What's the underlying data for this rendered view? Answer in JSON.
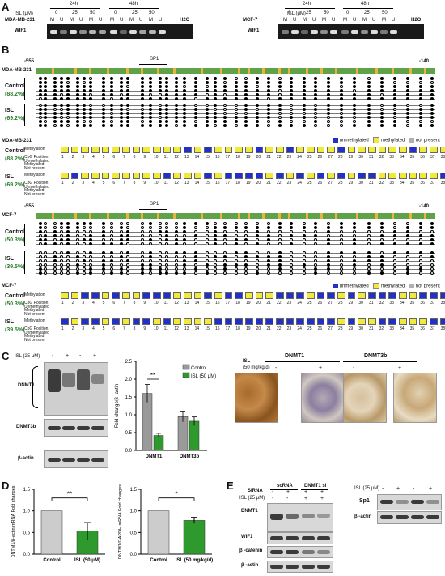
{
  "panels": {
    "a": "A",
    "b": "B",
    "c": "C",
    "d": "D",
    "e": "E"
  },
  "panelA": {
    "isl_label": "ISL (μM)",
    "left": {
      "cell": "MDA-MB-231",
      "gene": "WIF1",
      "h24": "24h",
      "h48": "48h",
      "doses": [
        "0",
        "25",
        "50",
        "0",
        "25",
        "50"
      ],
      "lanes": [
        "M",
        "U",
        "M",
        "U",
        "M",
        "U",
        "M",
        "U",
        "M",
        "U",
        "M",
        "U"
      ],
      "water": "H2O"
    },
    "right": {
      "cell": "MCF-7",
      "gene": "WIF1",
      "h24": "24h",
      "h48": "48h",
      "doses": [
        "0",
        "25",
        "50",
        "0",
        "25",
        "50"
      ],
      "lanes": [
        "M",
        "U",
        "M",
        "U",
        "M",
        "U",
        "M",
        "U",
        "M",
        "U",
        "M",
        "U"
      ],
      "water": "H2O"
    }
  },
  "panelB": {
    "pos_start": "-555",
    "pos_end": "-140",
    "sp1": "SP1",
    "mda": {
      "cell": "MDA-MB-231",
      "control": "Control",
      "control_pct": "(88.2%)",
      "isl": "ISL",
      "isl_pct": "(69.2%)"
    },
    "mcf": {
      "cell": "MCF-7",
      "control": "Control",
      "control_pct": "(50.3%)",
      "isl": "ISL",
      "isl_pct": "(39.5%)"
    },
    "legend": {
      "unmethylated": "unmethylated",
      "methylated": "methylated",
      "not_present": "not present"
    },
    "colors": {
      "unmethylated": "#2030c8",
      "methylated": "#f2ea3a",
      "not_present": "#b0b0b0"
    },
    "row_labels": [
      "CpG Position",
      "Unmethylated",
      "Methylated",
      "Not present"
    ],
    "methylation_label": "Methylation"
  },
  "panelC": {
    "blot": {
      "isl": "ISL (25 μM)",
      "signs": [
        "-",
        "+",
        "-",
        "+"
      ],
      "dnmt1": "DNMT1",
      "dnmt3b": "DNMT3b",
      "actin": "β-actin"
    },
    "ihc": {
      "isl": "ISL",
      "dose": "(50 mg/kg/d)",
      "dnmt1": "DNMT1",
      "dnmt3b": "DNMT3b",
      "signs": [
        "-",
        "+",
        "-",
        "+"
      ]
    }
  },
  "panelE": {
    "sirna": "SiRNA",
    "isl": "ISL (25 μM)",
    "scrna": "scRNA",
    "dnmt1si": "DNMT1 si",
    "signs_sirna": [
      "-",
      "+",
      "+",
      "+"
    ],
    "signs_isl": [
      "-",
      "-",
      "+",
      "+"
    ],
    "rows": [
      "DNMT1",
      "WIF1",
      "β -catenin",
      "β -actin"
    ],
    "right": {
      "isl": "ISL (25 μM)",
      "signs": [
        "-",
        "+",
        "-",
        "+"
      ],
      "rows": [
        "Sp1",
        "β -actin"
      ]
    }
  },
  "chart_data": [
    {
      "type": "bar",
      "categories": [
        "DNMT1",
        "DNMT3b"
      ],
      "series": [
        {
          "name": "Control",
          "values": [
            1.6,
            0.95
          ],
          "errors": [
            0.25,
            0.15
          ],
          "color": "#9a9a9a"
        },
        {
          "name": "ISL (50 μM)",
          "values": [
            0.42,
            0.82
          ],
          "errors": [
            0.06,
            0.12
          ],
          "color": "#2e9a2e"
        }
      ],
      "ylabel": "Fold change/β -actin",
      "ylim": [
        0,
        2.5
      ],
      "yticks": [
        "0.0",
        "0.5",
        "1.0",
        "1.5",
        "2.0",
        "2.5"
      ],
      "annotation": "**",
      "legend": "top-right"
    },
    {
      "type": "bar",
      "categories": [
        "Control",
        "ISL (50 μM)"
      ],
      "values": [
        1.0,
        0.53
      ],
      "errors": [
        0,
        0.2
      ],
      "colors": [
        "#cccccc",
        "#2e9a2e"
      ],
      "ylabel": "DNTM1/β-actin mRNA Fold changes",
      "ylim": [
        0,
        1.5
      ],
      "yticks": [
        "0.0",
        "0.5",
        "1.0",
        "1.5"
      ],
      "annotation": "**"
    },
    {
      "type": "bar",
      "categories": [
        "Control",
        "ISL (50 mg/kg/d)"
      ],
      "values": [
        1.0,
        0.78
      ],
      "errors": [
        0,
        0.07
      ],
      "colors": [
        "#cccccc",
        "#2e9a2e"
      ],
      "ylabel": "DNTM1/GAPDH mRNA Fold changes",
      "ylim": [
        0,
        1.5
      ],
      "yticks": [
        "0.0",
        "0.5",
        "1.0",
        "1.5"
      ],
      "annotation": "*"
    }
  ]
}
